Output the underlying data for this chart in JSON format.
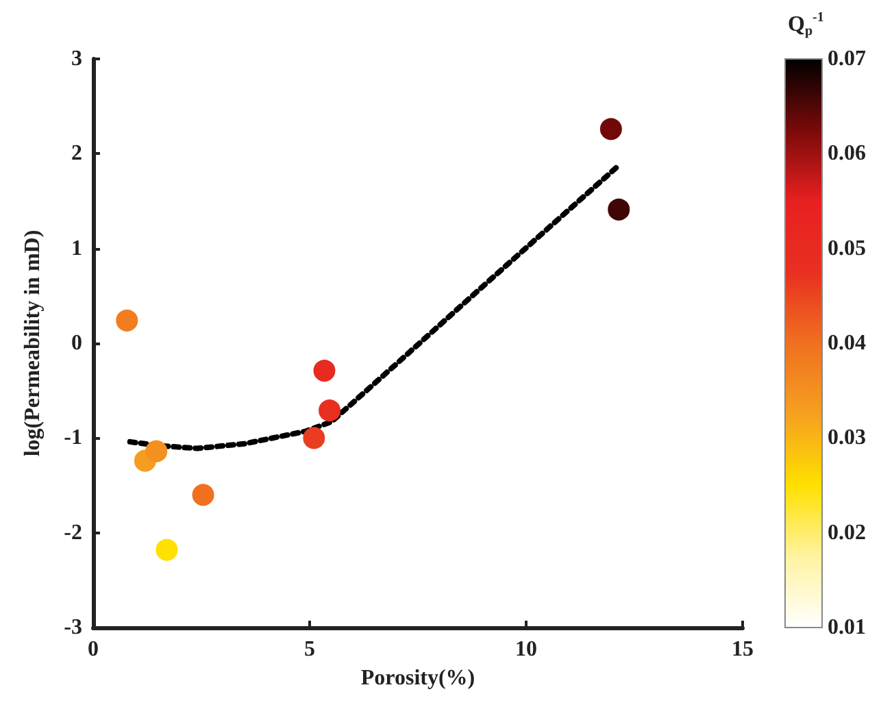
{
  "chart_data": {
    "type": "scatter",
    "xlabel": "Porosity(%)",
    "ylabel": "log(Permeability in mD)",
    "clabel": "Q$_{p}$$^{-1}$",
    "xlim": [
      0,
      15
    ],
    "xticks": [
      0,
      5,
      10,
      15
    ],
    "ylim": [
      -3,
      3
    ],
    "yticks": [
      -3,
      -2,
      -1,
      0,
      1,
      2,
      3
    ],
    "clim": [
      0.01,
      0.07
    ],
    "cticks": [
      0.01,
      0.02,
      0.03,
      0.04,
      0.05,
      0.06,
      0.07
    ],
    "grid": false,
    "series": [
      {
        "type": "scatter",
        "marker": "circle",
        "x": [
          0.78,
          1.2,
          1.46,
          2.54,
          1.7,
          5.1,
          5.34,
          5.46,
          11.96,
          12.14
        ],
        "values": [
          0.24,
          -1.24,
          -1.14,
          -1.6,
          -2.18,
          -1.0,
          -0.29,
          -0.71,
          2.26,
          1.41
        ],
        "cvalues": [
          0.038,
          0.033,
          0.035,
          0.04,
          0.025,
          0.046,
          0.05,
          0.048,
          0.063,
          0.066
        ],
        "colors": [
          "#f17d20",
          "#f59d20",
          "#f39020",
          "#f07020",
          "#ffe000",
          "#ea3d20",
          "#e82b20",
          "#e82f20",
          "#720909",
          "#410505"
        ]
      },
      {
        "type": "line",
        "marker": "none",
        "line_style": "dotted",
        "color": "#000000",
        "x": [
          0.85,
          1.5,
          2.4,
          3.5,
          4.9,
          5.5,
          7,
          9,
          10.5,
          12.1
        ],
        "values": [
          -1.04,
          -1.08,
          -1.11,
          -1.06,
          -0.93,
          -0.83,
          -0.22,
          0.6,
          1.21,
          1.86
        ]
      }
    ]
  }
}
